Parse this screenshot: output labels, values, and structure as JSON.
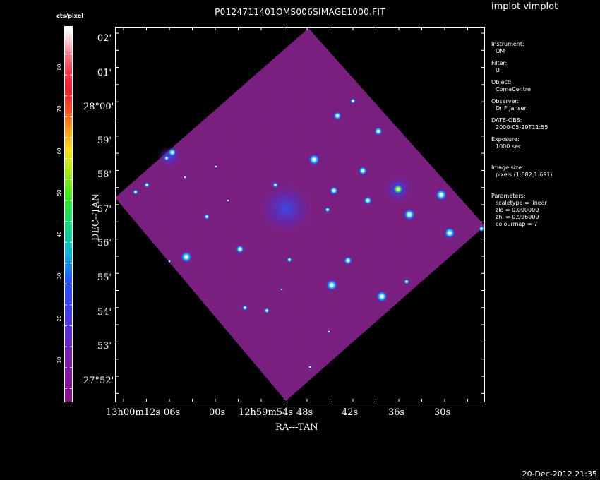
{
  "title": "P0124711401OMS006SIMAGE1000.FIT",
  "corner_label": "implot vimplot",
  "timestamp": "20-Dec-2012 21:35",
  "colorbar": {
    "label": "cts/pixel",
    "ticks": [
      "10",
      "20",
      "30",
      "40",
      "50",
      "60",
      "70",
      "80"
    ]
  },
  "axes": {
    "xlabel": "RA---TAN",
    "ylabel": "DEC--TAN",
    "yticks": [
      "02'",
      "01'",
      "28°00'",
      "59'",
      "58'",
      "57'",
      "56'",
      "55'",
      "54'",
      "53'",
      "27°52'"
    ],
    "xticks": [
      "13h00m12s",
      "06s",
      "00s",
      "12h59m54s",
      "48s",
      "42s",
      "36s",
      "30s"
    ]
  },
  "info": {
    "instrument_label": "Instrument:",
    "instrument": "OM",
    "filter_label": "Filter:",
    "filter": "U",
    "object_label": "Object:",
    "object": "ComaCentre",
    "observer_label": "Observer:",
    "observer": "Dr F Jansen",
    "date_label": "DATE-OBS:",
    "date": "2000-05-29T11:55",
    "exposure_label": "Exposure:",
    "exposure": "1000 sec",
    "size_label": "Image size:",
    "size": "pixels (1:682,1:691)",
    "params_label": "Parameters:",
    "scaletype": "scaletype = linear",
    "zlo": "zlo = 0.000000",
    "zhi": "zhi = 0.996000",
    "colourmap": "colourmap = 7"
  },
  "colors": {
    "background": "#000000",
    "image_field": "#7a1f7e",
    "foreground": "#ffffff"
  }
}
